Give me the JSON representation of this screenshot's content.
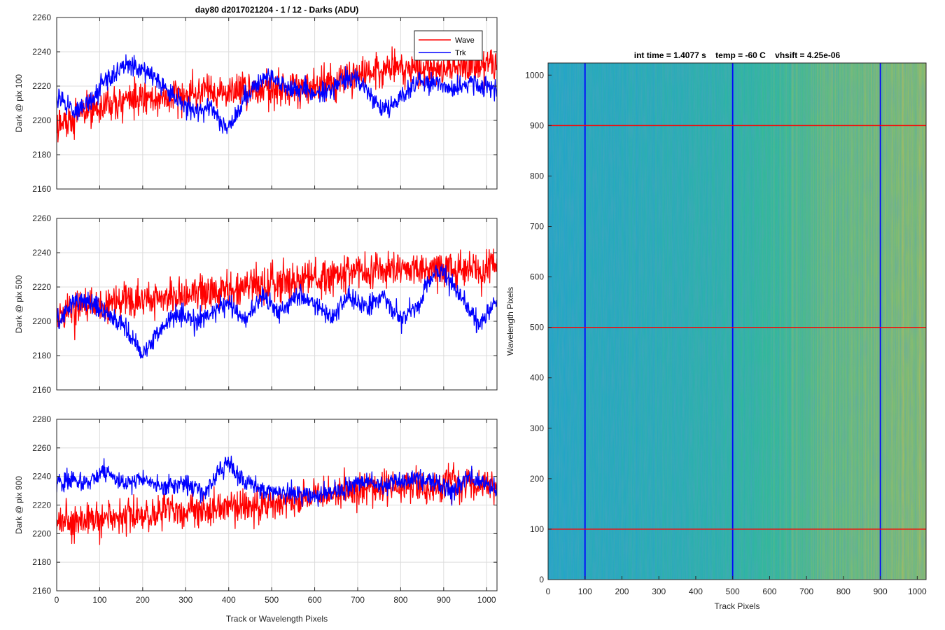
{
  "figure": {
    "background": "#ffffff"
  },
  "chart_data": [
    {
      "type": "line",
      "title": "day80 d2017021204 - 1 / 12 - Darks (ADU)",
      "xlabel": "",
      "ylabel": "Dark @ pix 100",
      "xlim": [
        0,
        1024
      ],
      "ylim": [
        2160,
        2260
      ],
      "xticks": [
        0,
        100,
        200,
        300,
        400,
        500,
        600,
        700,
        800,
        900,
        1000
      ],
      "yticks": [
        2160,
        2180,
        2200,
        2220,
        2240,
        2260
      ],
      "show_xticklabels": false,
      "grid": true,
      "legend": {
        "position": "top-right",
        "entries": [
          "Wave",
          "Trk"
        ]
      },
      "series": [
        {
          "name": "Wave",
          "color": "#ff0000",
          "x": [
            0,
            64,
            128,
            192,
            256,
            320,
            384,
            448,
            512,
            576,
            640,
            704,
            768,
            832,
            896,
            960,
            1024
          ],
          "y": [
            2197,
            2205,
            2210,
            2212,
            2214,
            2215,
            2216,
            2218,
            2220,
            2220,
            2222,
            2226,
            2230,
            2230,
            2230,
            2232,
            2233
          ],
          "noise": 9
        },
        {
          "name": "Trk",
          "color": "#0000ff",
          "x": [
            0,
            40,
            80,
            120,
            160,
            200,
            240,
            280,
            320,
            360,
            380,
            400,
            440,
            480,
            500,
            540,
            580,
            620,
            660,
            700,
            760,
            800,
            840,
            880,
            920,
            960,
            1024
          ],
          "y": [
            2215,
            2205,
            2212,
            2225,
            2232,
            2230,
            2222,
            2212,
            2205,
            2208,
            2200,
            2195,
            2215,
            2225,
            2225,
            2220,
            2218,
            2215,
            2222,
            2225,
            2205,
            2212,
            2222,
            2222,
            2218,
            2222,
            2218
          ],
          "noise": 5
        }
      ]
    },
    {
      "type": "line",
      "title": "",
      "xlabel": "",
      "ylabel": "Dark @ pix 500",
      "xlim": [
        0,
        1024
      ],
      "ylim": [
        2160,
        2260
      ],
      "xticks": [
        0,
        100,
        200,
        300,
        400,
        500,
        600,
        700,
        800,
        900,
        1000
      ],
      "yticks": [
        2160,
        2180,
        2200,
        2220,
        2240,
        2260
      ],
      "show_xticklabels": false,
      "grid": true,
      "series": [
        {
          "name": "Wave",
          "color": "#ff0000",
          "x": [
            0,
            64,
            128,
            192,
            256,
            320,
            384,
            448,
            512,
            576,
            640,
            704,
            768,
            832,
            896,
            960,
            1024
          ],
          "y": [
            2205,
            2208,
            2210,
            2212,
            2214,
            2215,
            2217,
            2220,
            2222,
            2225,
            2226,
            2228,
            2230,
            2230,
            2231,
            2230,
            2232
          ],
          "noise": 9
        },
        {
          "name": "Trk",
          "color": "#0000ff",
          "x": [
            0,
            40,
            80,
            120,
            160,
            200,
            240,
            280,
            320,
            360,
            400,
            440,
            480,
            520,
            560,
            600,
            640,
            680,
            720,
            760,
            800,
            840,
            880,
            900,
            940,
            980,
            1024
          ],
          "y": [
            2200,
            2212,
            2210,
            2203,
            2198,
            2180,
            2195,
            2205,
            2200,
            2205,
            2210,
            2200,
            2215,
            2205,
            2215,
            2210,
            2202,
            2215,
            2208,
            2215,
            2200,
            2210,
            2230,
            2228,
            2215,
            2198,
            2212
          ],
          "noise": 5
        }
      ]
    },
    {
      "type": "line",
      "title": "",
      "xlabel": "Track or Wavelength Pixels",
      "ylabel": "Dark @ pix 900",
      "xlim": [
        0,
        1024
      ],
      "ylim": [
        2160,
        2280
      ],
      "xticks": [
        0,
        100,
        200,
        300,
        400,
        500,
        600,
        700,
        800,
        900,
        1000
      ],
      "yticks": [
        2160,
        2180,
        2200,
        2220,
        2240,
        2260,
        2280
      ],
      "show_xticklabels": true,
      "grid": true,
      "series": [
        {
          "name": "Wave",
          "color": "#ff0000",
          "x": [
            0,
            64,
            128,
            192,
            256,
            320,
            384,
            448,
            512,
            576,
            640,
            704,
            768,
            832,
            896,
            960,
            1024
          ],
          "y": [
            2208,
            2210,
            2212,
            2213,
            2215,
            2216,
            2218,
            2220,
            2222,
            2225,
            2228,
            2230,
            2232,
            2234,
            2235,
            2236,
            2232
          ],
          "noise": 10
        },
        {
          "name": "Trk",
          "color": "#0000ff",
          "x": [
            0,
            40,
            80,
            110,
            150,
            200,
            250,
            300,
            340,
            400,
            440,
            480,
            520,
            560,
            600,
            640,
            680,
            720,
            760,
            800,
            840,
            880,
            920,
            960,
            1024
          ],
          "y": [
            2235,
            2238,
            2235,
            2245,
            2235,
            2238,
            2232,
            2235,
            2228,
            2250,
            2235,
            2232,
            2228,
            2228,
            2225,
            2230,
            2232,
            2238,
            2232,
            2238,
            2238,
            2235,
            2230,
            2240,
            2232
          ],
          "noise": 6
        }
      ]
    },
    {
      "type": "heatmap",
      "title": "int time = 1.4077 s    temp = -60 C    vhsift = 4.25e-06",
      "xlabel": "Track Pixels",
      "ylabel": "Wavelength Pixels",
      "xlim": [
        0,
        1024
      ],
      "ylim": [
        0,
        1024
      ],
      "xticks": [
        0,
        100,
        200,
        300,
        400,
        500,
        600,
        700,
        800,
        900,
        1000
      ],
      "yticks": [
        0,
        100,
        200,
        300,
        400,
        500,
        600,
        700,
        800,
        900,
        1000
      ],
      "grid": false,
      "colormap": {
        "low": "#1f9ed8",
        "mid": "#35b89a",
        "high": "#c9bd4f"
      },
      "trend": {
        "x": [
          0,
          500,
          700,
          1024
        ],
        "level": [
          0.15,
          0.38,
          0.62,
          0.78
        ]
      },
      "vlines": {
        "x": [
          100,
          500,
          900
        ],
        "color": "#0000ff"
      },
      "hlines": {
        "y": [
          100,
          500,
          900
        ],
        "color": "#ff0000"
      }
    }
  ]
}
